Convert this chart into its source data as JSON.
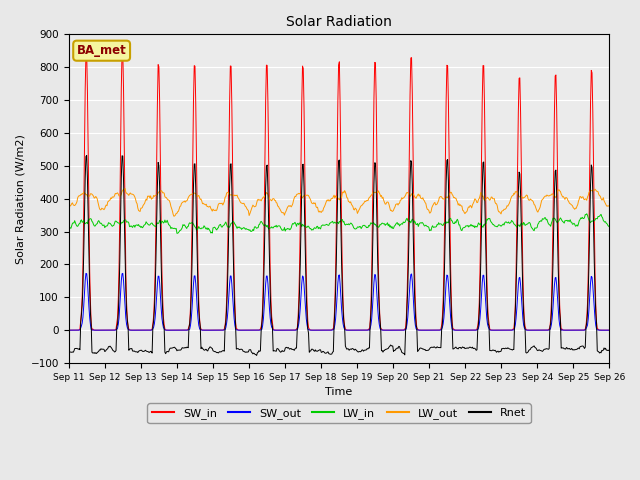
{
  "title": "Solar Radiation",
  "ylabel": "Solar Radiation (W/m2)",
  "xlabel": "Time",
  "station_label": "BA_met",
  "ylim": [
    -100,
    900
  ],
  "yticks": [
    -100,
    0,
    100,
    200,
    300,
    400,
    500,
    600,
    700,
    800,
    900
  ],
  "x_tick_labels": [
    "Sep 11",
    "Sep 12",
    "Sep 13",
    "Sep 14",
    "Sep 15",
    "Sep 16",
    "Sep 17",
    "Sep 18",
    "Sep 19",
    "Sep 20",
    "Sep 21",
    "Sep 22",
    "Sep 23",
    "Sep 24",
    "Sep 25",
    "Sep 26"
  ],
  "colors": {
    "SW_in": "#ff0000",
    "SW_out": "#0000ff",
    "LW_in": "#00cc00",
    "LW_out": "#ff9900",
    "Rnet": "#000000"
  },
  "fig_bg": "#e8e8e8",
  "plot_bg": "#ebebeb",
  "n_days": 15,
  "dt_minutes": 30,
  "sw_peaks": [
    860,
    860,
    820,
    820,
    820,
    820,
    820,
    825,
    825,
    848,
    825,
    820,
    790,
    800,
    800
  ],
  "lw_in_base": [
    315,
    315,
    310,
    305,
    305,
    305,
    305,
    310,
    310,
    310,
    310,
    310,
    315,
    320,
    325
  ],
  "lw_out_base": [
    365,
    370,
    365,
    360,
    358,
    355,
    358,
    362,
    362,
    368,
    360,
    358,
    360,
    365,
    370
  ]
}
